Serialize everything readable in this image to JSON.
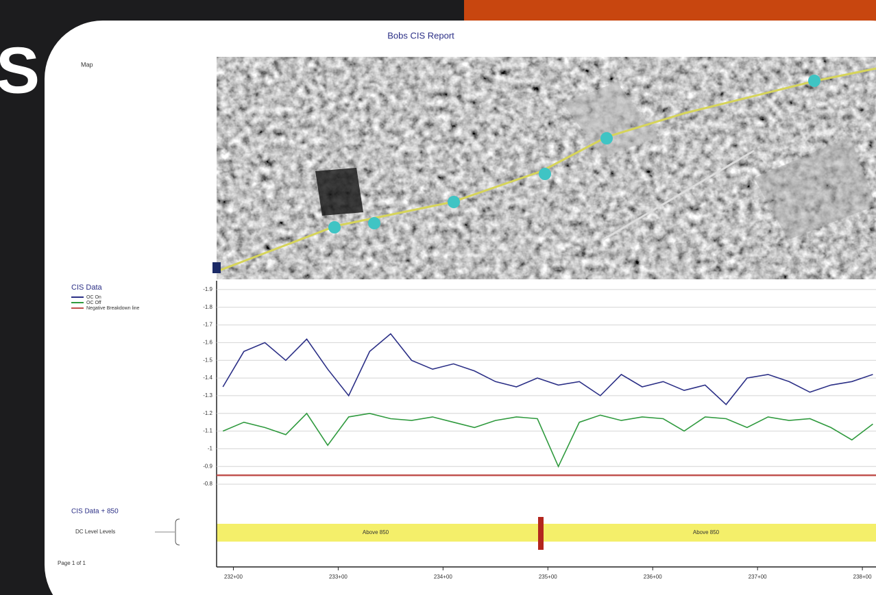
{
  "slide_text": "S",
  "report": {
    "title": "Bobs CIS Report",
    "map_label": "Map",
    "page": "Page 1 of 1"
  },
  "strip": {
    "title": "CIS Data + 850",
    "label": "DC Level Levels",
    "labels": [
      "Above 850",
      "Above 850"
    ]
  },
  "chart_data": {
    "type": "line",
    "title": "CIS Data",
    "x": [
      23190,
      23210,
      23230,
      23250,
      23270,
      23290,
      23310,
      23330,
      23350,
      23370,
      23390,
      23410,
      23430,
      23450,
      23470,
      23490,
      23510,
      23530,
      23550,
      23570,
      23590,
      23610,
      23630,
      23650,
      23670,
      23690,
      23710,
      23730,
      23750,
      23770,
      23790,
      23810
    ],
    "series": [
      {
        "name": "OC On",
        "color": "#2b2f86",
        "values": [
          -1.35,
          -1.55,
          -1.6,
          -1.5,
          -1.62,
          -1.45,
          -1.3,
          -1.55,
          -1.65,
          -1.5,
          -1.45,
          -1.48,
          -1.44,
          -1.38,
          -1.35,
          -1.4,
          -1.36,
          -1.38,
          -1.3,
          -1.42,
          -1.35,
          -1.38,
          -1.33,
          -1.36,
          -1.25,
          -1.4,
          -1.42,
          -1.38,
          -1.32,
          -1.36,
          -1.38,
          -1.42
        ]
      },
      {
        "name": "OC Off",
        "color": "#2f9a3e",
        "values": [
          -1.1,
          -1.15,
          -1.12,
          -1.08,
          -1.2,
          -1.02,
          -1.18,
          -1.2,
          -1.17,
          -1.16,
          -1.18,
          -1.15,
          -1.12,
          -1.16,
          -1.18,
          -1.17,
          -0.9,
          -1.15,
          -1.19,
          -1.16,
          -1.18,
          -1.17,
          -1.1,
          -1.18,
          -1.17,
          -1.12,
          -1.18,
          -1.16,
          -1.17,
          -1.12,
          -1.05,
          -1.14
        ]
      }
    ],
    "threshold": {
      "name": "Negative Breakdown line",
      "value": -0.85,
      "color": "#c0504d"
    },
    "ylim": [
      -0.75,
      -1.95
    ],
    "yticks": [
      -1.9,
      -1.8,
      -1.7,
      -1.6,
      -1.5,
      -1.4,
      -1.3,
      -1.2,
      -1.1,
      -1,
      -0.9,
      -0.8
    ],
    "xlim": [
      23184,
      23813
    ],
    "xticks": [
      {
        "value": 23200,
        "label": "232+00"
      },
      {
        "value": 23300,
        "label": "233+00"
      },
      {
        "value": 23400,
        "label": "234+00"
      },
      {
        "value": 23500,
        "label": "235+00"
      },
      {
        "value": 23600,
        "label": "236+00"
      },
      {
        "value": 23700,
        "label": "237+00"
      },
      {
        "value": 23800,
        "label": "238+00"
      }
    ],
    "grid": true
  }
}
